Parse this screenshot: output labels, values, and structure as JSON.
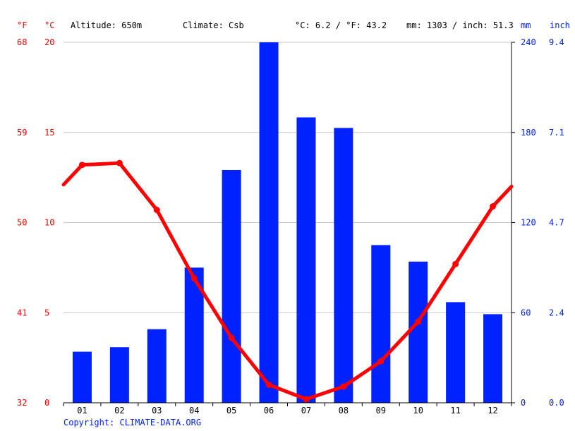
{
  "header": {
    "altitude": "Altitude: 650m",
    "climate": "Climate: Csb",
    "avg_temp": "°C: 6.2 / °F: 43.2",
    "precip_total": "mm: 1303 / inch: 51.3"
  },
  "units": {
    "fahrenheit": "°F",
    "celsius": "°C",
    "mm": "mm",
    "inch": "inch"
  },
  "copyright": "Copyright: CLIMATE-DATA.ORG",
  "colors": {
    "temperature": "#ff0000",
    "precipitation": "#0022ff",
    "grid": "#c8c8c8",
    "axis": "#000000"
  },
  "chart_data": {
    "type": "bar",
    "categories": [
      "01",
      "02",
      "03",
      "04",
      "05",
      "06",
      "07",
      "08",
      "09",
      "10",
      "11",
      "12"
    ],
    "series": [
      {
        "type": "bar",
        "axis": "right",
        "unit": "mm",
        "values": [
          34,
          37,
          49,
          90,
          155,
          240,
          190,
          183,
          105,
          94,
          67,
          59
        ]
      },
      {
        "type": "line",
        "axis": "left",
        "unit": "°C",
        "values": [
          13.2,
          13.3,
          10.7,
          6.9,
          3.6,
          1.0,
          0.2,
          0.9,
          2.3,
          4.5,
          7.7,
          10.9
        ],
        "edge_start": 12.1,
        "edge_end": 12.0
      }
    ],
    "left_axis_celsius": {
      "ylim": [
        0,
        20
      ],
      "ticks": [
        "0",
        "5",
        "10",
        "15",
        "20"
      ]
    },
    "left_axis_fahrenheit": {
      "ticks": [
        "32",
        "41",
        "50",
        "59",
        "68"
      ]
    },
    "right_axis_mm": {
      "ylim": [
        0,
        240
      ],
      "ticks": [
        "0",
        "60",
        "120",
        "180",
        "240"
      ]
    },
    "right_axis_inch": {
      "ticks": [
        "0.0",
        "2.4",
        "4.7",
        "7.1",
        "9.4"
      ]
    },
    "grid": true
  }
}
